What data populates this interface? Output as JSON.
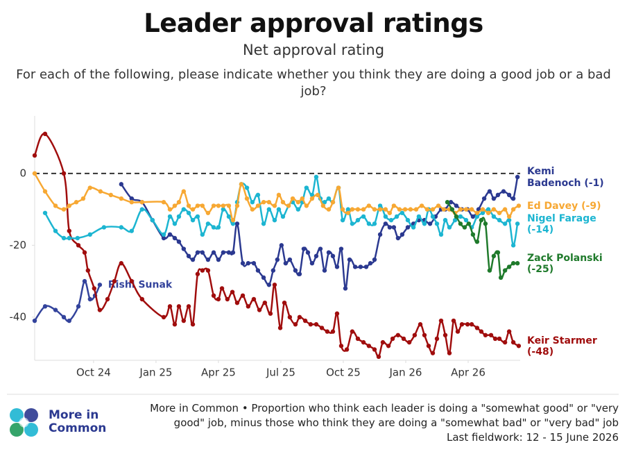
{
  "chart_data": {
    "type": "line",
    "title": "Leader approval ratings",
    "subtitle": "Net approval rating",
    "question": "For each of the following, please indicate whether you think they are doing a good job or a bad job?",
    "xlim": [
      6.17,
      29.5
    ],
    "xticks": [
      {
        "value": 9,
        "label": "Oct 24"
      },
      {
        "value": 12,
        "label": "Jan 25"
      },
      {
        "value": 15,
        "label": "Apr 25"
      },
      {
        "value": 18,
        "label": "Jul 25"
      },
      {
        "value": 21,
        "label": "Oct 25"
      },
      {
        "value": 24,
        "label": "Jan 26"
      },
      {
        "value": 27,
        "label": "Apr 26"
      }
    ],
    "ylim": [
      -52,
      16
    ],
    "yticks": [
      -40,
      -20,
      0
    ],
    "hline": 0,
    "series": [
      {
        "name": "Rishi Sunak",
        "color": "#33439c",
        "label_lines": [
          "Rishi Sunak"
        ],
        "x": [
          6.17,
          6.67,
          7.17,
          7.57,
          7.83,
          8.27,
          8.57,
          8.83,
          9.07,
          9.3
        ],
        "values": [
          -41,
          -37,
          -38,
          -40,
          -41,
          -37,
          -30,
          -35,
          -34,
          -31
        ]
      },
      {
        "name": "Keir Starmer",
        "color": "#a00d0d",
        "label_lines": [
          "Keir Starmer",
          "(-48)"
        ],
        "x": [
          6.17,
          6.67,
          7.57,
          7.83,
          8.27,
          8.57,
          8.73,
          9.03,
          9.3,
          9.67,
          10,
          10.33,
          10.83,
          11.33,
          12.37,
          12.67,
          12.9,
          13.1,
          13.33,
          13.57,
          13.77,
          14,
          14.23,
          14.5,
          14.77,
          15,
          15.17,
          15.43,
          15.67,
          15.9,
          16.17,
          16.43,
          16.7,
          16.97,
          17.23,
          17.5,
          17.7,
          17.97,
          18.17,
          18.43,
          18.7,
          18.9,
          19.17,
          19.43,
          19.7,
          19.97,
          20.23,
          20.5,
          20.7,
          20.9,
          21.17,
          21.43,
          21.7,
          21.97,
          22.23,
          22.5,
          22.7,
          22.9,
          23.17,
          23.37,
          23.63,
          23.9,
          24.17,
          24.43,
          24.7,
          24.9,
          25.1,
          25.3,
          25.5,
          25.7,
          25.9,
          26.1,
          26.3,
          26.5,
          26.7,
          26.97,
          27.17,
          27.43,
          27.63,
          27.83,
          28.1,
          28.3,
          28.5,
          28.77,
          28.97,
          29.17,
          29.43
        ],
        "values": [
          5,
          11,
          0,
          -16,
          -20,
          -22,
          -27,
          -32,
          -38,
          -35,
          -30,
          -25,
          -30,
          -35,
          -40,
          -37,
          -42,
          -37,
          -41,
          -37,
          -42,
          -28,
          -27,
          -27,
          -34,
          -35,
          -32,
          -35,
          -33,
          -36,
          -34,
          -37,
          -35,
          -38,
          -36,
          -39,
          -31,
          -43,
          -36,
          -40,
          -42,
          -40,
          -41,
          -42,
          -42,
          -43,
          -44,
          -44,
          -39,
          -48,
          -49,
          -44,
          -46,
          -47,
          -48,
          -49,
          -51,
          -47,
          -48,
          -46,
          -45,
          -46,
          -47,
          -45,
          -42,
          -45,
          -48,
          -50,
          -46,
          -41,
          -45,
          -50,
          -41,
          -44,
          -42,
          -42,
          -42,
          -43,
          -44,
          -45,
          -45,
          -46,
          -46,
          -47,
          -44,
          -47,
          -48
        ]
      },
      {
        "name": "Kemi Badenoch",
        "color": "#2b3990",
        "label_lines": [
          "Kemi",
          "Badenoch (-1)"
        ],
        "x": [
          10.33,
          10.83,
          11.33,
          11.83,
          12.37,
          12.67,
          12.9,
          13.1,
          13.33,
          13.57,
          13.77,
          14,
          14.23,
          14.5,
          14.77,
          15,
          15.23,
          15.5,
          15.7,
          15.9,
          16.17,
          16.43,
          16.7,
          16.9,
          17.17,
          17.43,
          17.63,
          17.83,
          18.03,
          18.23,
          18.43,
          18.7,
          18.9,
          19.1,
          19.3,
          19.5,
          19.7,
          19.9,
          20.1,
          20.3,
          20.5,
          20.7,
          20.9,
          21.1,
          21.3,
          21.57,
          21.83,
          22.1,
          22.3,
          22.5,
          22.77,
          23.03,
          23.23,
          23.43,
          23.63,
          23.83,
          24.1,
          24.37,
          24.63,
          24.9,
          25.17,
          25.43,
          25.7,
          25.9,
          26.17,
          26.43,
          26.7,
          26.97,
          27.23,
          27.5,
          27.77,
          28.03,
          28.23,
          28.43,
          28.7,
          28.97,
          29.17,
          29.37
        ],
        "values": [
          -3,
          -7,
          -8,
          -13,
          -18,
          -17,
          -18,
          -19,
          -21,
          -23,
          -24,
          -22,
          -22,
          -24,
          -22,
          -24,
          -22,
          -22,
          -22,
          -14,
          -25,
          -25,
          -25,
          -27,
          -29,
          -31,
          -27,
          -24,
          -20,
          -25,
          -24,
          -27,
          -28,
          -21,
          -22,
          -25,
          -23,
          -21,
          -27,
          -22,
          -23,
          -26,
          -21,
          -32,
          -24,
          -26,
          -26,
          -26,
          -25,
          -24,
          -17,
          -14,
          -15,
          -15,
          -18,
          -17,
          -15,
          -14,
          -13,
          -13,
          -14,
          -12,
          -10,
          -10,
          -8,
          -9,
          -10,
          -10,
          -12,
          -10,
          -7,
          -5,
          -7,
          -6,
          -5,
          -6,
          -7,
          -1
        ]
      },
      {
        "name": "Nigel Farage",
        "color": "#1cb5d1",
        "label_lines": [
          "Nigel Farage",
          "(-14)"
        ],
        "x": [
          6.67,
          7.17,
          7.57,
          7.83,
          8.23,
          8.83,
          9.5,
          10.33,
          10.83,
          11.33,
          11.83,
          12.37,
          12.67,
          12.9,
          13.1,
          13.33,
          13.57,
          13.77,
          14,
          14.23,
          14.5,
          14.77,
          15,
          15.23,
          15.5,
          15.7,
          15.9,
          16.1,
          16.37,
          16.63,
          16.9,
          17.17,
          17.43,
          17.7,
          17.9,
          18.1,
          18.37,
          18.57,
          18.83,
          19.03,
          19.23,
          19.5,
          19.7,
          19.9,
          20.1,
          20.3,
          20.5,
          20.77,
          20.97,
          21.23,
          21.43,
          21.7,
          21.97,
          22.23,
          22.5,
          22.77,
          23.03,
          23.3,
          23.57,
          23.83,
          24.1,
          24.37,
          24.63,
          24.9,
          25.1,
          25.3,
          25.5,
          25.7,
          25.9,
          26.1,
          26.37,
          26.63,
          26.9,
          27.17,
          27.43,
          27.7,
          27.97,
          28.23,
          28.5,
          28.77,
          28.97,
          29.17,
          29.37
        ],
        "values": [
          -11,
          -16,
          -18,
          -18,
          -18,
          -17,
          -15,
          -15,
          -16,
          -10,
          -13,
          -17,
          -12,
          -14,
          -12,
          -10,
          -11,
          -13,
          -12,
          -17,
          -14,
          -15,
          -15,
          -10,
          -12,
          -14,
          -8,
          -3,
          -4,
          -8,
          -6,
          -14,
          -10,
          -13,
          -10,
          -12,
          -9,
          -8,
          -10,
          -8,
          -4,
          -6,
          -1,
          -7,
          -8,
          -7,
          -8,
          -4,
          -13,
          -10,
          -14,
          -13,
          -12,
          -14,
          -14,
          -9,
          -12,
          -13,
          -12,
          -11,
          -13,
          -15,
          -12,
          -14,
          -10,
          -12,
          -14,
          -17,
          -13,
          -15,
          -13,
          -12,
          -13,
          -15,
          -12,
          -11,
          -10,
          -12,
          -13,
          -14,
          -13,
          -20,
          -14
        ]
      },
      {
        "name": "Ed Davey",
        "color": "#f7a833",
        "label_lines": [
          "Ed Davey (-9)"
        ],
        "x": [
          6.17,
          6.67,
          7.17,
          7.57,
          7.83,
          8.17,
          8.5,
          8.83,
          9.33,
          9.83,
          10.33,
          10.83,
          11.33,
          12.37,
          12.67,
          12.9,
          13.1,
          13.33,
          13.57,
          13.77,
          14,
          14.23,
          14.5,
          14.77,
          15,
          15.23,
          15.5,
          15.7,
          15.9,
          16.1,
          16.37,
          16.63,
          16.9,
          17.17,
          17.43,
          17.7,
          17.9,
          18.1,
          18.37,
          18.57,
          18.83,
          19.03,
          19.23,
          19.5,
          19.77,
          20.03,
          20.3,
          20.5,
          20.77,
          20.97,
          21.23,
          21.43,
          21.7,
          21.97,
          22.23,
          22.5,
          22.77,
          23.03,
          23.23,
          23.43,
          23.7,
          23.97,
          24.23,
          24.5,
          24.77,
          25.03,
          25.3,
          25.57,
          25.83,
          26.1,
          26.37,
          26.63,
          26.9,
          27.17,
          27.43,
          27.7,
          27.97,
          28.23,
          28.5,
          28.77,
          28.97,
          29.17,
          29.43
        ],
        "values": [
          0,
          -5,
          -9,
          -10,
          -9,
          -8,
          -7,
          -4,
          -5,
          -6,
          -7,
          -8,
          -8,
          -8,
          -10,
          -9,
          -8,
          -5,
          -9,
          -10,
          -9,
          -9,
          -11,
          -9,
          -9,
          -9,
          -9,
          -13,
          -9,
          -3,
          -7,
          -10,
          -9,
          -8,
          -8,
          -9,
          -6,
          -8,
          -9,
          -7,
          -8,
          -7,
          -9,
          -7,
          -6,
          -9,
          -10,
          -8,
          -4,
          -10,
          -11,
          -10,
          -10,
          -10,
          -9,
          -10,
          -10,
          -10,
          -11,
          -9,
          -10,
          -10,
          -10,
          -10,
          -9,
          -10,
          -10,
          -9,
          -10,
          -10,
          -11,
          -10,
          -10,
          -10,
          -11,
          -10,
          -11,
          -10,
          -11,
          -10,
          -12,
          -10,
          -9
        ]
      },
      {
        "name": "Zack Polanski",
        "color": "#1f7a2b",
        "label_lines": [
          "Zack Polanski",
          "(-25)"
        ],
        "x": [
          26,
          26.23,
          26.43,
          26.63,
          26.83,
          27.03,
          27.23,
          27.43,
          27.63,
          27.83,
          28.03,
          28.23,
          28.43,
          28.57,
          28.77,
          28.97,
          29.17,
          29.37
        ],
        "values": [
          -8,
          -10,
          -12,
          -14,
          -15,
          -14,
          -17,
          -19,
          -13,
          -14,
          -27,
          -23,
          -22,
          -29,
          -27,
          -26,
          -25,
          -25
        ]
      }
    ],
    "brand": [
      "More in",
      "Common"
    ],
    "note": "More in Common • Proportion who think each leader is doing a \"somewhat good\" or \"very good\" job, minus those who think they are doing a \"somewhat bad\" or \"very bad\" job",
    "fieldwork": "Last fieldwork: 12 - 15 June 2026"
  }
}
